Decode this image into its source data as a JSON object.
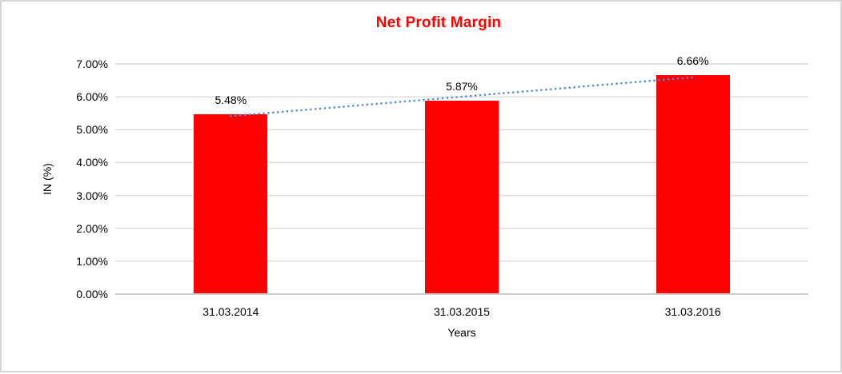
{
  "chart_data": {
    "type": "bar",
    "title": "Net Profit Margin",
    "title_color": "#ff0000",
    "categories": [
      "31.03.2014",
      "31.03.2015",
      "31.03.2016"
    ],
    "values": [
      5.48,
      5.87,
      6.66
    ],
    "data_labels": [
      "5.48%",
      "5.87%",
      "6.66%"
    ],
    "xlabel": "Years",
    "ylabel": "IN (%)",
    "ylim": [
      0,
      7
    ],
    "ytick_step": 1,
    "ytick_labels": [
      "0.00%",
      "1.00%",
      "2.00%",
      "3.00%",
      "4.00%",
      "5.00%",
      "6.00%",
      "7.00%"
    ],
    "bar_color": "#ff0000",
    "gridline_color": "#d9d9d9",
    "axis_line_color": "#bfbfbf",
    "grid": true,
    "legend": "none",
    "trendline": {
      "type": "linear",
      "style": "dotted",
      "color": "#4e8bd0",
      "series": "Net Profit Margin"
    }
  }
}
